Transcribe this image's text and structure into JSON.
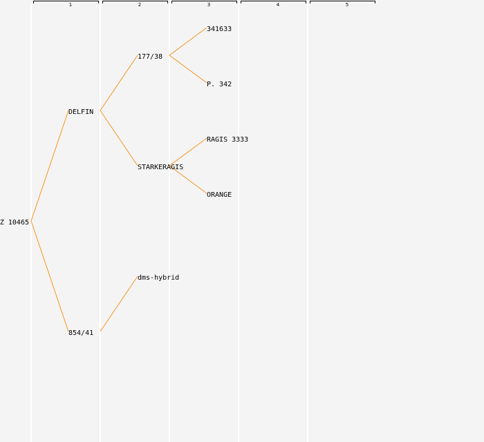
{
  "header": {
    "columns": [
      "1",
      "2",
      "3",
      "4",
      "5"
    ]
  },
  "nodes": [
    {
      "label": "Z 10465"
    },
    {
      "label": "DELFIN"
    },
    {
      "label": "854/41"
    },
    {
      "label": "177/38"
    },
    {
      "label": "STARKERAGIS"
    },
    {
      "label": "dms-hybrid"
    },
    {
      "label": "341633"
    },
    {
      "label": "P. 342"
    },
    {
      "label": "RAGIS 3333"
    },
    {
      "label": "ORANGE"
    }
  ]
}
